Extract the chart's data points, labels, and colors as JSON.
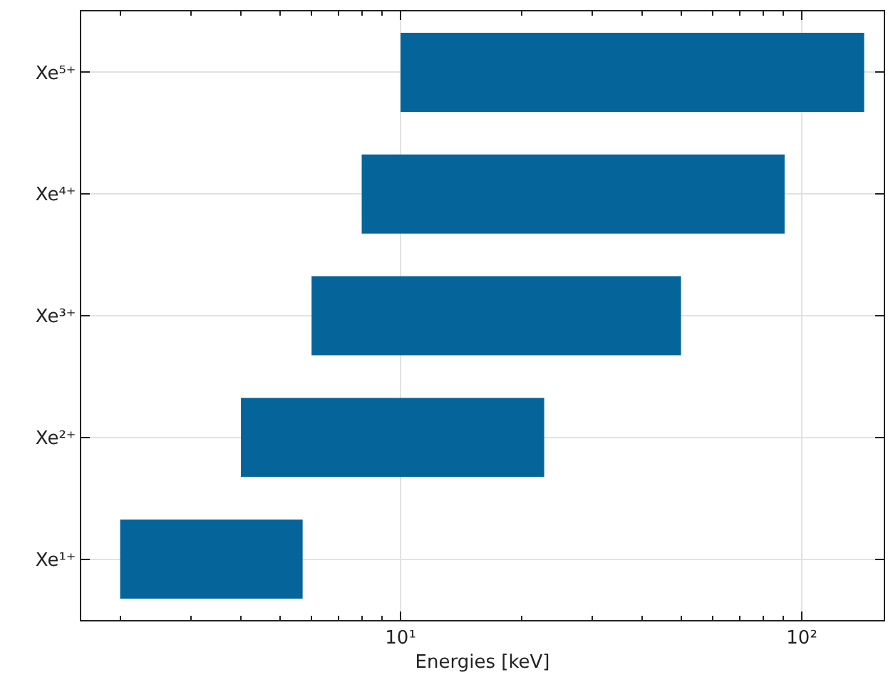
{
  "chart_data": {
    "type": "bar",
    "orientation": "horizontal",
    "xlabel": "Energies [keV]",
    "categories": [
      "Xe⁵⁺",
      "Xe⁴⁺",
      "Xe³⁺",
      "Xe²⁺",
      "Xe¹⁺"
    ],
    "base": [
      10,
      8,
      6,
      4,
      2
    ],
    "values": [
      133,
      82.6,
      44,
      18.8,
      3.7
    ],
    "color": "#05659a",
    "log": "x",
    "xlim": [
      1.6,
      160
    ],
    "xticks": [
      {
        "value": 2,
        "label": null
      },
      {
        "value": 3,
        "label": null
      },
      {
        "value": 4,
        "label": null
      },
      {
        "value": 5,
        "label": null
      },
      {
        "value": 6,
        "label": null
      },
      {
        "value": 7,
        "label": null
      },
      {
        "value": 8,
        "label": null
      },
      {
        "value": 9,
        "label": null
      },
      {
        "value": 10,
        "label": "10¹"
      },
      {
        "value": 20,
        "label": null
      },
      {
        "value": 30,
        "label": null
      },
      {
        "value": 40,
        "label": null
      },
      {
        "value": 50,
        "label": null
      },
      {
        "value": 60,
        "label": null
      },
      {
        "value": 70,
        "label": null
      },
      {
        "value": 80,
        "label": null
      },
      {
        "value": 90,
        "label": null
      },
      {
        "value": 100,
        "label": "10²"
      }
    ],
    "grid": true
  }
}
